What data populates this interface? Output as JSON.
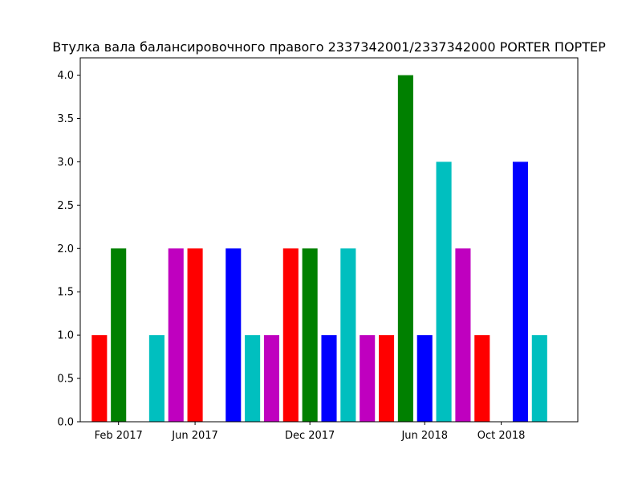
{
  "chart_data": {
    "type": "bar",
    "title": "Втулка вала балансировочного правого 2337342001/2337342000 PORTER ПОРТЕР",
    "xlabel": "",
    "ylabel": "",
    "x_axis_type": "date",
    "xlim": [
      "2016-12-01",
      "2019-02-01"
    ],
    "ylim": [
      0,
      4.2
    ],
    "grid": false,
    "x_tick_labels": [
      "Feb 2017",
      "Jun 2017",
      "Dec 2017",
      "Jun 2018",
      "Oct 2018"
    ],
    "x_tick_dates": [
      "2017-02-01",
      "2017-06-01",
      "2017-12-01",
      "2018-06-01",
      "2018-10-01"
    ],
    "y_ticks": [
      0.0,
      0.5,
      1.0,
      1.5,
      2.0,
      2.5,
      3.0,
      3.5,
      4.0
    ],
    "y_tick_labels": [
      "0.0",
      "0.5",
      "1.0",
      "1.5",
      "2.0",
      "2.5",
      "3.0",
      "3.5",
      "4.0"
    ],
    "bars": [
      {
        "x": "2017-01-01",
        "value": 1,
        "color": "#ff0000"
      },
      {
        "x": "2017-02-01",
        "value": 2,
        "color": "#008000"
      },
      {
        "x": "2017-04-01",
        "value": 1,
        "color": "#00bfbf"
      },
      {
        "x": "2017-05-01",
        "value": 2,
        "color": "#bf00bf"
      },
      {
        "x": "2017-06-01",
        "value": 2,
        "color": "#ff0000"
      },
      {
        "x": "2017-08-01",
        "value": 2,
        "color": "#0000ff"
      },
      {
        "x": "2017-09-01",
        "value": 1,
        "color": "#00bfbf"
      },
      {
        "x": "2017-10-01",
        "value": 1,
        "color": "#bf00bf"
      },
      {
        "x": "2017-11-01",
        "value": 2,
        "color": "#ff0000"
      },
      {
        "x": "2017-12-01",
        "value": 2,
        "color": "#008000"
      },
      {
        "x": "2018-01-01",
        "value": 1,
        "color": "#0000ff"
      },
      {
        "x": "2018-02-01",
        "value": 2,
        "color": "#00bfbf"
      },
      {
        "x": "2018-03-01",
        "value": 1,
        "color": "#bf00bf"
      },
      {
        "x": "2018-04-01",
        "value": 1,
        "color": "#ff0000"
      },
      {
        "x": "2018-05-01",
        "value": 4,
        "color": "#008000"
      },
      {
        "x": "2018-06-01",
        "value": 1,
        "color": "#0000ff"
      },
      {
        "x": "2018-07-01",
        "value": 3,
        "color": "#00bfbf"
      },
      {
        "x": "2018-08-01",
        "value": 2,
        "color": "#bf00bf"
      },
      {
        "x": "2018-09-01",
        "value": 1,
        "color": "#ff0000"
      },
      {
        "x": "2018-11-01",
        "value": 3,
        "color": "#0000ff"
      },
      {
        "x": "2018-12-01",
        "value": 1,
        "color": "#00bfbf"
      }
    ]
  }
}
